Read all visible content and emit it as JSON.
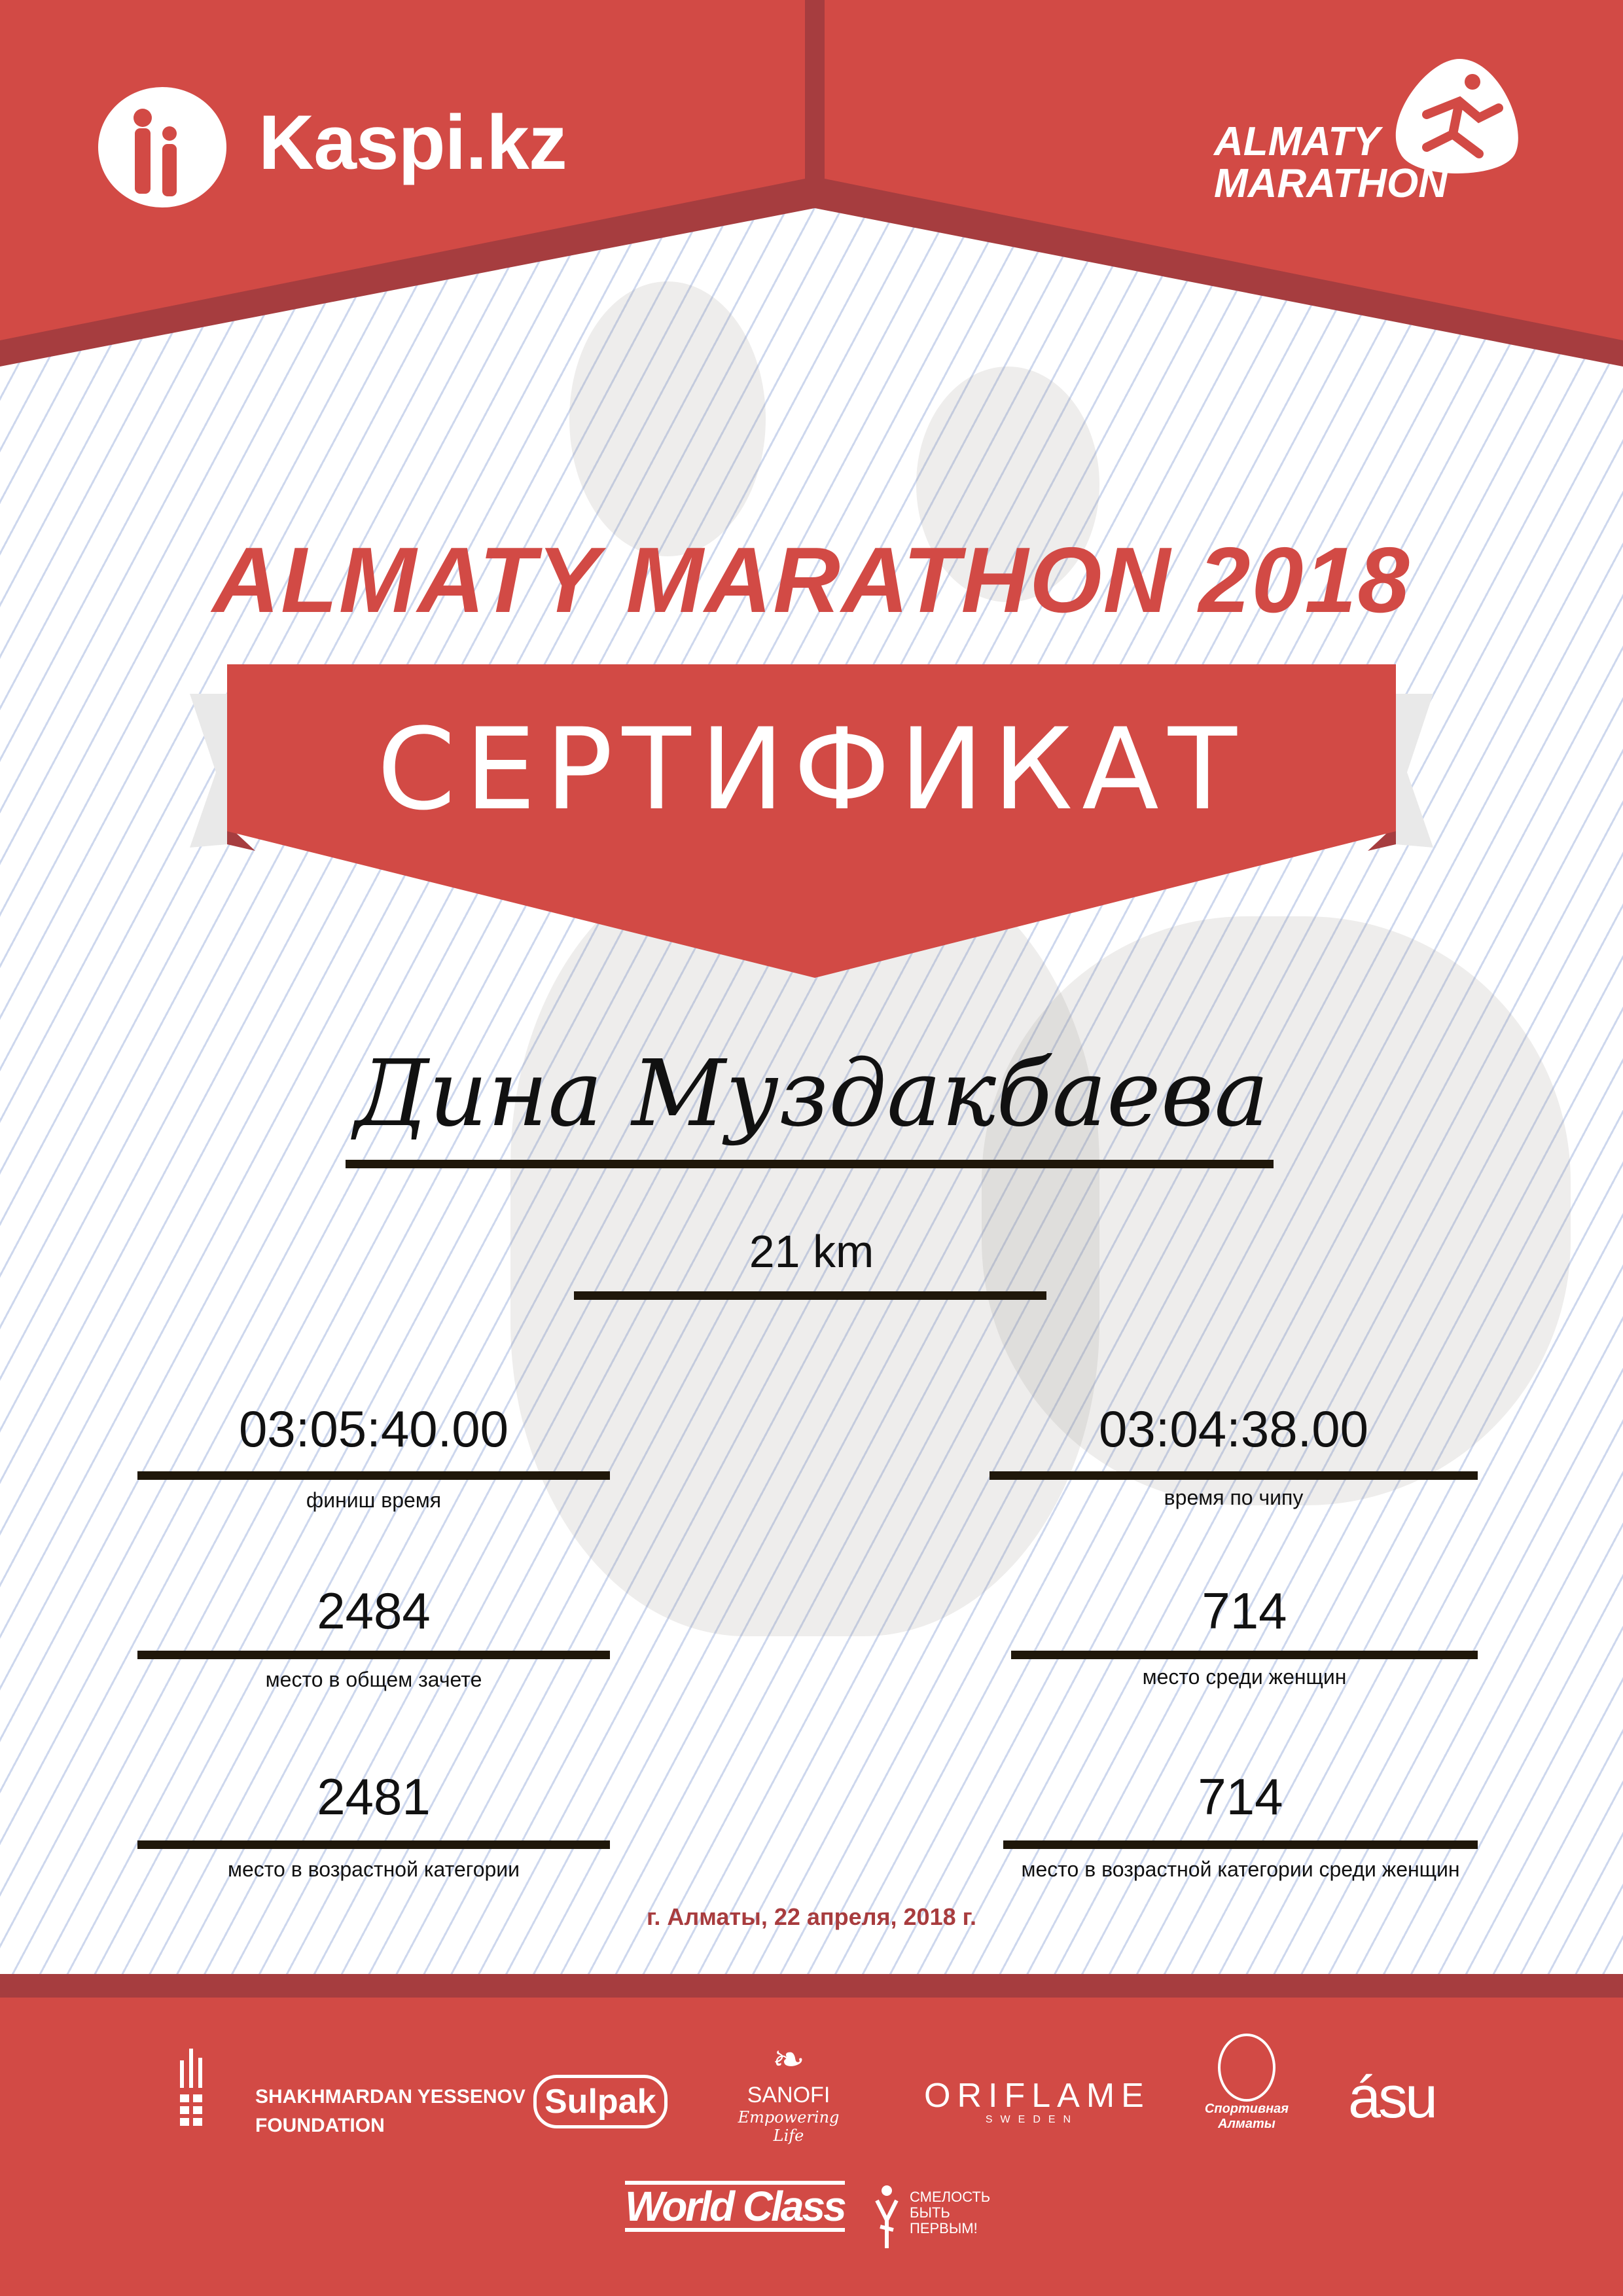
{
  "header": {
    "sponsor_logo": "Kaspi.kz",
    "event_logo_line1": "ALMATY",
    "event_logo_line2": "MARATHON"
  },
  "title": "ALMATY MARATHON 2018",
  "banner": "СЕРТИФИКАТ",
  "participant": {
    "name": "Дина Муздакбаева",
    "distance": "21 km"
  },
  "results": [
    {
      "value": "03:05:40.00",
      "label": "финиш время"
    },
    {
      "value": "03:04:38.00",
      "label": "время по чипу"
    },
    {
      "value": "2484",
      "label": "место в общем зачете"
    },
    {
      "value": "714",
      "label": "место среди женщин"
    },
    {
      "value": "2481",
      "label": "место в возрастной категории"
    },
    {
      "value": "714",
      "label": "место в возрастной категории среди женщин"
    }
  ],
  "date": "г. Алматы, 22 апреля, 2018 г.",
  "sponsors": {
    "yessenov_line1": "SHAKHMARDAN YESSENOV",
    "yessenov_line2": "FOUNDATION",
    "sulpak": "Sulpak",
    "sanofi": "SANOFI",
    "sanofi_tagline": "Empowering Life",
    "oriflame": "ORIFLAME",
    "oriflame_sub": "SWEDEN",
    "sport_almaty": "Спортивная Алматы",
    "asu": "ásu",
    "worldclass": "World Class",
    "fund_line1": "СМЕЛОСТЬ",
    "fund_line2": "БЫТЬ",
    "fund_line3": "ПЕРВЫМ!"
  },
  "colors": {
    "brand_red": "#d24a45",
    "dark_red": "#a63d3f",
    "line_blue": "#c4d0ea"
  }
}
